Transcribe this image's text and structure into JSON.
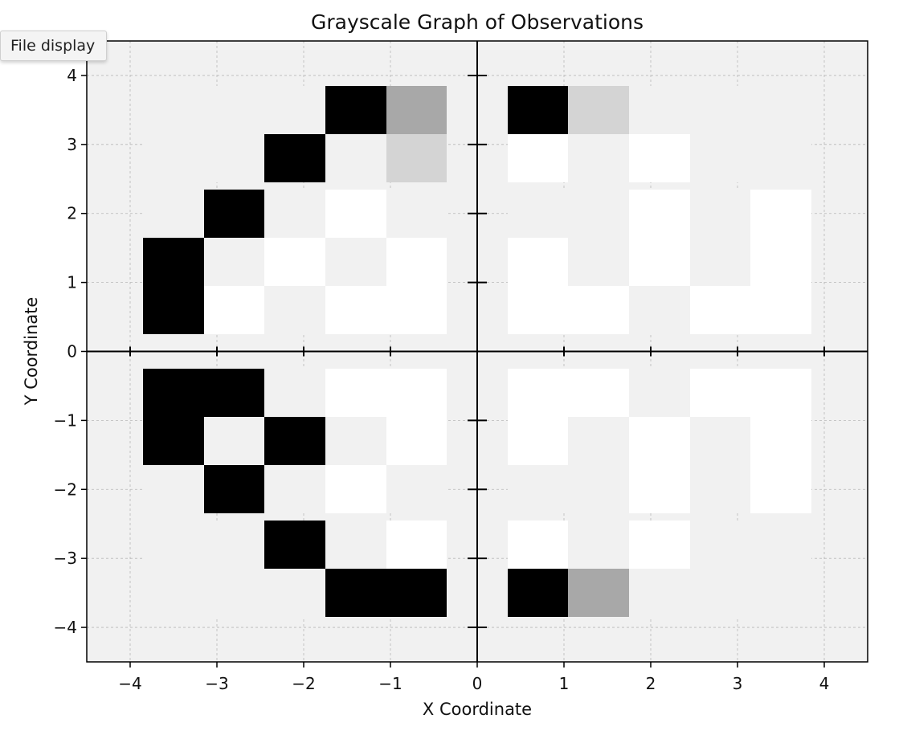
{
  "toolbar": {
    "file_display_label": "File display"
  },
  "chart_data": {
    "type": "heatmap",
    "title": "Grayscale Graph of Observations",
    "xlabel": "X Coordinate",
    "ylabel": "Y Coordinate",
    "xlim": [
      -4.5,
      4.5
    ],
    "ylim": [
      -4.5,
      4.5
    ],
    "xticks": [
      {
        "value": -4,
        "label": "−4"
      },
      {
        "value": -3,
        "label": "−3"
      },
      {
        "value": -2,
        "label": "−2"
      },
      {
        "value": -1,
        "label": "−1"
      },
      {
        "value": 0,
        "label": "0"
      },
      {
        "value": 1,
        "label": "1"
      },
      {
        "value": 2,
        "label": "2"
      },
      {
        "value": 3,
        "label": "3"
      },
      {
        "value": 4,
        "label": "4"
      }
    ],
    "yticks": [
      {
        "value": -4,
        "label": "−4"
      },
      {
        "value": -3,
        "label": "−3"
      },
      {
        "value": -2,
        "label": "−2"
      },
      {
        "value": -1,
        "label": "−1"
      },
      {
        "value": 0,
        "label": "0"
      },
      {
        "value": 1,
        "label": "1"
      },
      {
        "value": 2,
        "label": "2"
      },
      {
        "value": 3,
        "label": "3"
      },
      {
        "value": 4,
        "label": "4"
      }
    ],
    "grid": true,
    "cell_x": [
      -3.5,
      -2.8,
      -2.1,
      -1.4,
      -0.7,
      0.7,
      1.4,
      2.1,
      2.8,
      3.5
    ],
    "cell_y": [
      3.5,
      2.8,
      2.0,
      1.3,
      0.6,
      -0.6,
      -1.3,
      -2.0,
      -2.8,
      -3.5
    ],
    "cell_width": 0.7,
    "cell_height": 0.7,
    "palette": {
      "K": "#000000",
      "D": "#a8a8a8",
      "L": "#d4d4d4",
      "W": "#ffffff",
      "g": "#f1f1f1"
    },
    "grid_rows": [
      "gggKDKLggg",
      "ggKgLWgWgg",
      "gKgWgggWgW",
      "KgWgWWgWgW",
      "KWgWWWWgWW",
      "KKgWWWWgWW",
      "KgKgWWgWgW",
      "gKgWgggWgW",
      "ggKgWWgWgg",
      "gggKKKDggg"
    ],
    "background": "#f1f1f1",
    "cross_axes": true
  }
}
